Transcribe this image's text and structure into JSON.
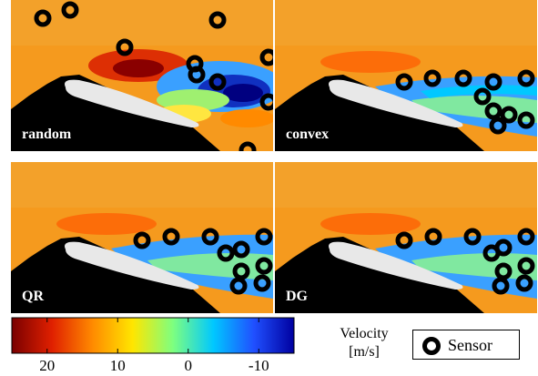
{
  "panels": [
    {
      "label": "random"
    },
    {
      "label": "convex"
    },
    {
      "label": "QR"
    },
    {
      "label": "DG"
    }
  ],
  "colorbar": {
    "ticks": [
      "20",
      "10",
      "0",
      "-10"
    ],
    "title_line1": "Velocity",
    "title_line2": "[m/s]",
    "colors": [
      "#7a0000",
      "#e02000",
      "#ff8a00",
      "#ffe600",
      "#7dff80",
      "#00c8ff",
      "#2050ff",
      "#0000a0"
    ]
  },
  "legend": {
    "label": "Sensor",
    "marker": "ring-marker-icon"
  },
  "colors": {
    "background_flow": "#f59a1e",
    "airfoil": "#e8e8e8",
    "shadow": "#000000"
  }
}
